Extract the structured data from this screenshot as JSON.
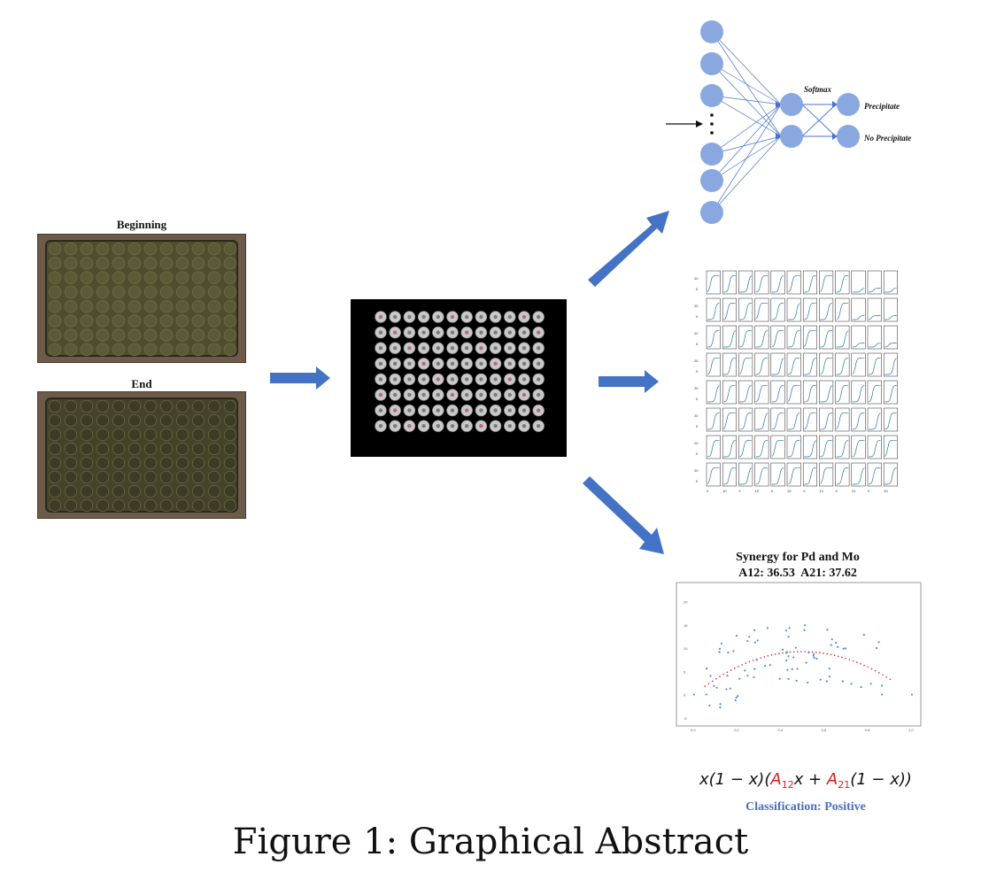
{
  "photos": {
    "beginning_label": "Beginning",
    "end_label": "End"
  },
  "network": {
    "softmax_label": "Softmax",
    "outputs": [
      "Precipitate",
      "No Precipitate"
    ],
    "node_color": "#8aa8df",
    "ellipsis": "⋮"
  },
  "scatter": {
    "title": "Synergy for Pd and Mo",
    "subtitle": "A12: 36.53  A21: 37.62",
    "x_ticks": [
      "0.0",
      "0.2",
      "0.4",
      "0.6",
      "0.8",
      "1.0"
    ],
    "y_ticks": [
      "20",
      "15",
      "10",
      "5",
      "0",
      "-5"
    ]
  },
  "formula": {
    "prefix": "x(1 − x)(",
    "a12": "A",
    "a12_sub": "12",
    "mid": "x + ",
    "a21": "A",
    "a21_sub": "21",
    "suffix": "(1 − x))"
  },
  "classification": "Classification: Positive",
  "caption": "Figure 1: Graphical Abstract",
  "colors": {
    "arrow": "#4472c4",
    "node": "#8aa8df",
    "curve": "#1f77b4",
    "fit": "#e11c1c"
  }
}
